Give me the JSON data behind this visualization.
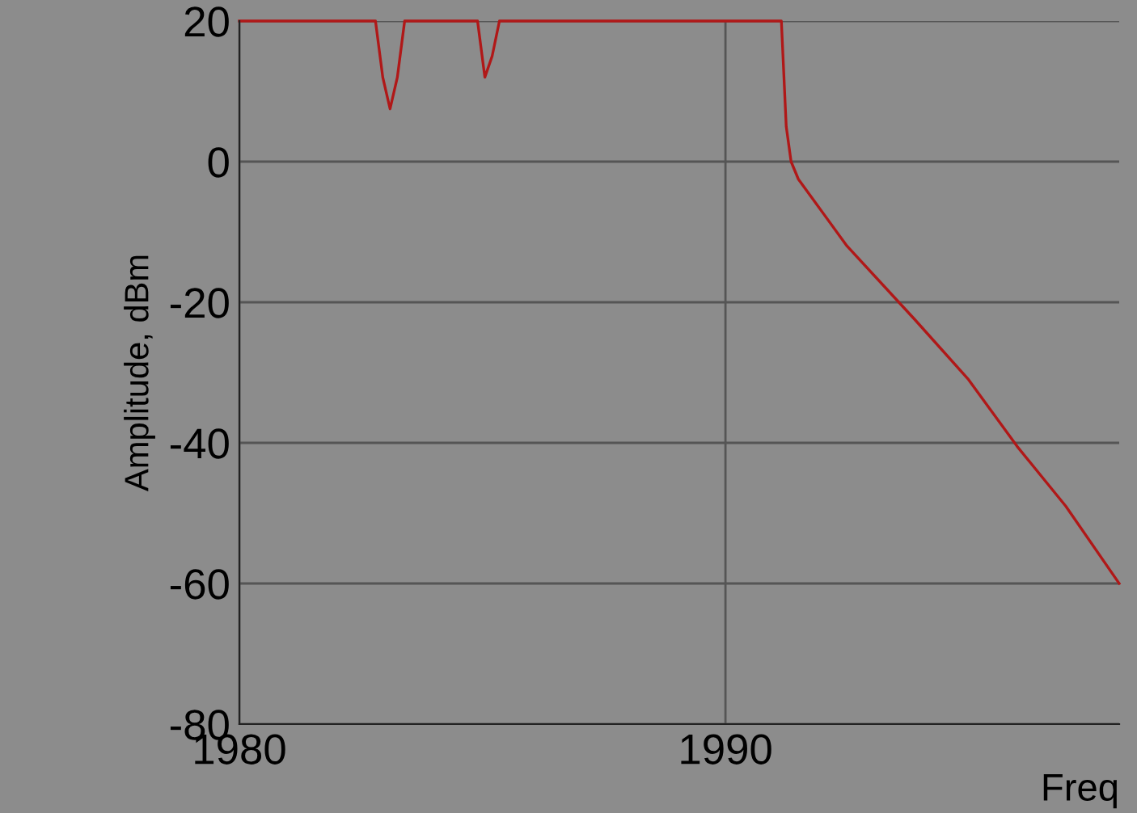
{
  "chart_data": {
    "type": "line",
    "xlabel": "Freq",
    "ylabel": "Amplitude, dBm",
    "x": [
      1980,
      1982.8,
      1982.95,
      1983.1,
      1983.25,
      1983.4,
      1984.9,
      1985.05,
      1985.2,
      1985.35,
      1991.15,
      1991.25,
      1991.35,
      1991.5,
      1992.5,
      1993.9,
      1995.0,
      1996.0,
      1997.0,
      1998.1
    ],
    "series": [
      {
        "color": "#b01818",
        "values": [
          20,
          20,
          12,
          7.5,
          12,
          20,
          20,
          12,
          15,
          20,
          20,
          5,
          0,
          -2.5,
          -12,
          -22.5,
          -31,
          -40.5,
          -49,
          -60
        ]
      }
    ],
    "xlim": [
      1980,
      1998.1
    ],
    "xticks": [
      1980,
      1990
    ],
    "ylim": [
      -80,
      20
    ],
    "yticks": [
      -80,
      -60,
      -40,
      -20,
      0,
      20
    ],
    "grid": true
  }
}
